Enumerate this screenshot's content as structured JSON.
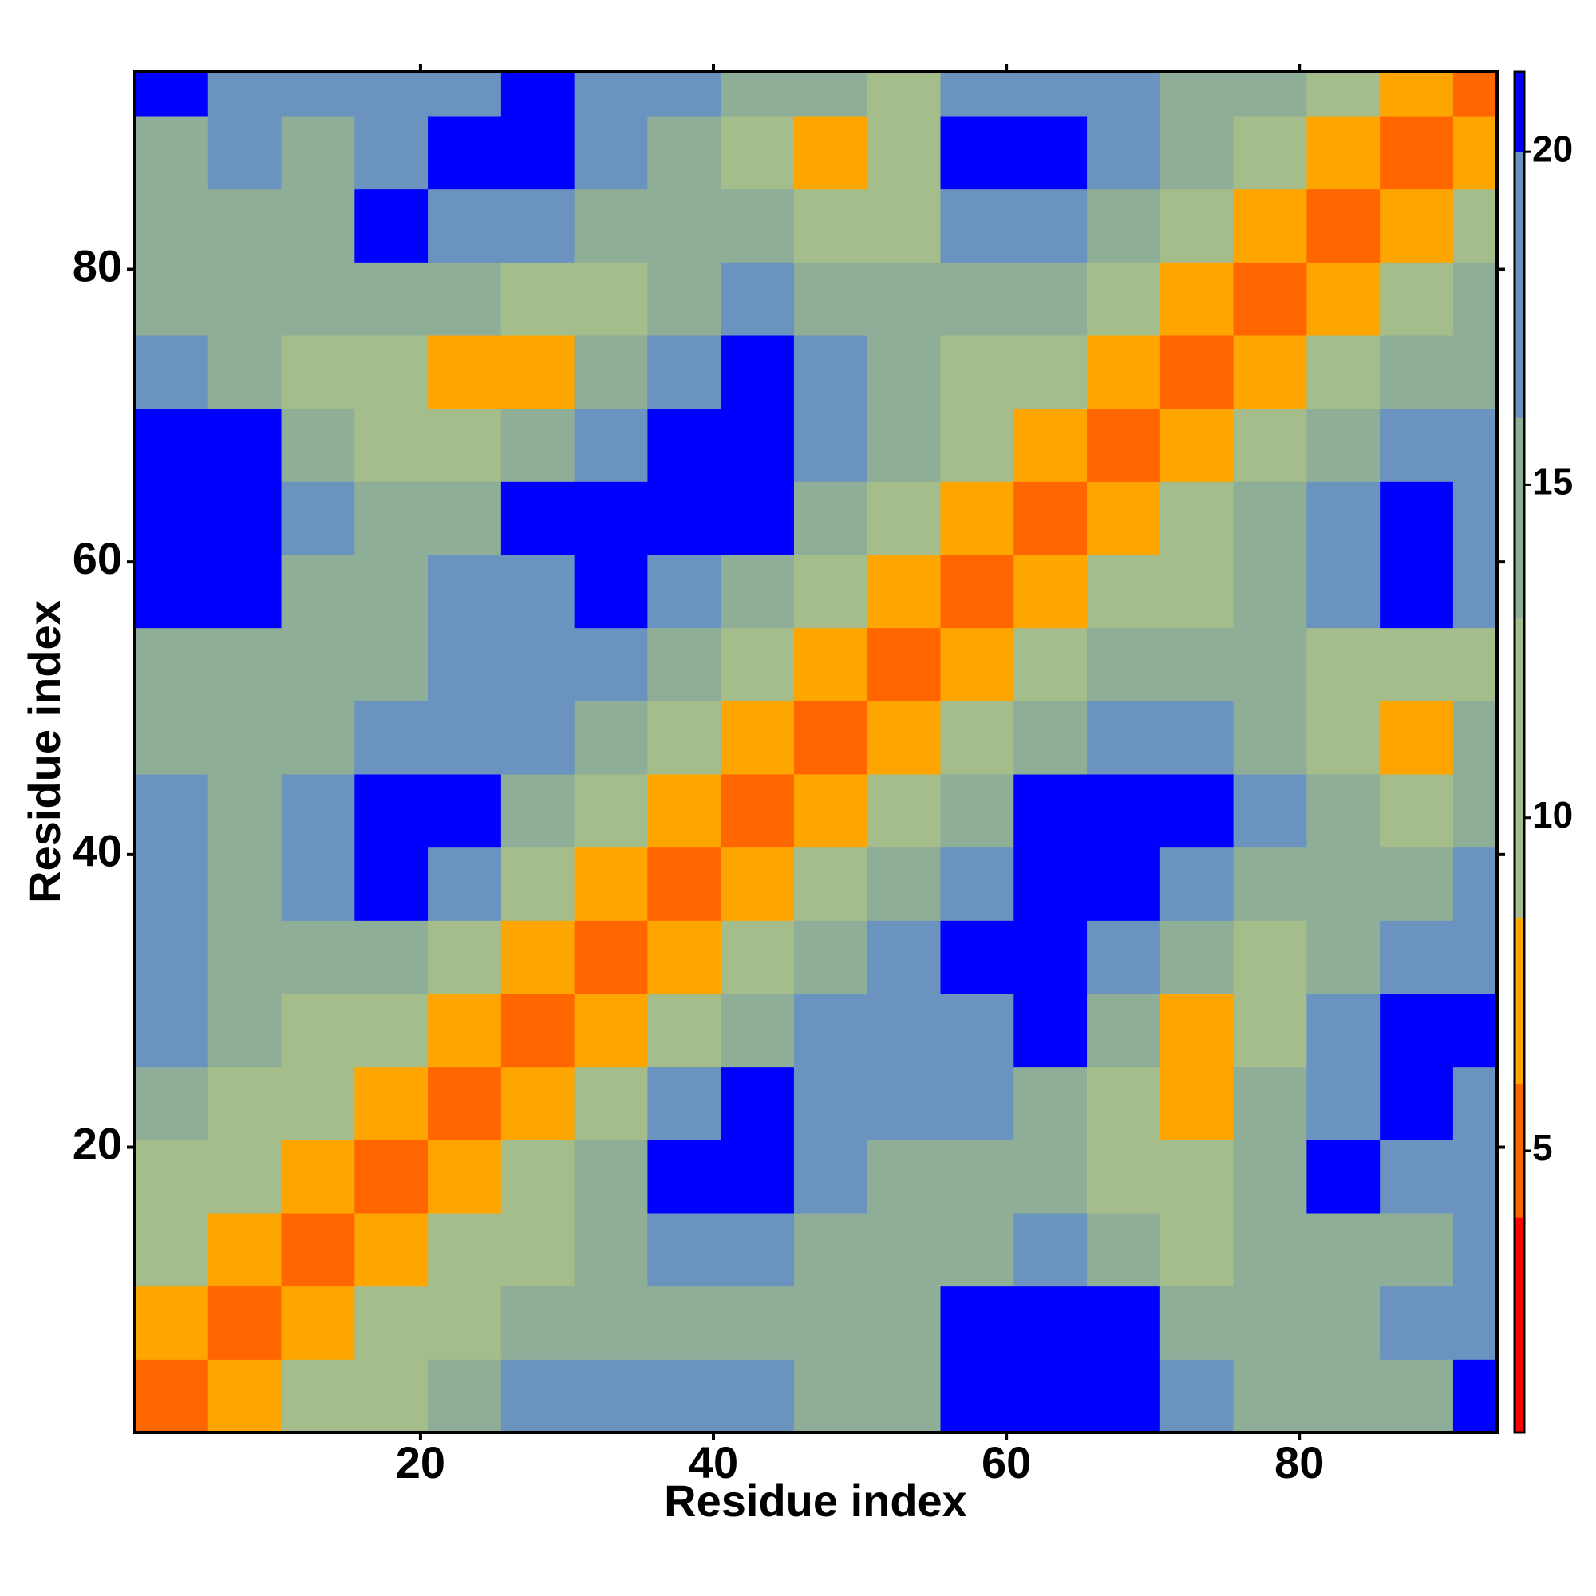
{
  "chart_data": {
    "type": "heatmap",
    "xlabel": "Residue index",
    "ylabel": "Residue index",
    "xbins": [
      0.5,
      5.5,
      10.5,
      15.5,
      20.5,
      25.5,
      30.5,
      35.5,
      40.5,
      45.5,
      50.5,
      55.5,
      60.5,
      65.5,
      70.5,
      75.5,
      80.5,
      85.5,
      90.5,
      93.5
    ],
    "ybins": [
      0.5,
      5.5,
      10.5,
      15.5,
      20.5,
      25.5,
      30.5,
      35.5,
      40.5,
      45.5,
      50.5,
      55.5,
      60.5,
      65.5,
      70.5,
      75.5,
      80.5,
      85.5,
      90.5,
      93.5
    ],
    "z": [
      [
        4,
        8,
        10,
        12,
        14,
        16,
        19,
        17,
        17,
        14,
        15,
        21,
        21,
        21,
        16,
        15,
        14,
        15,
        21
      ],
      [
        8,
        4,
        8,
        10,
        12,
        14,
        14,
        15,
        15,
        13,
        14,
        20,
        21,
        21,
        15,
        13,
        14,
        16,
        19
      ],
      [
        10,
        8,
        4,
        8,
        10,
        12,
        14,
        18,
        18,
        14,
        13,
        15,
        17,
        15,
        12,
        13,
        15,
        15,
        18
      ],
      [
        12,
        10,
        8,
        4,
        8,
        10,
        13,
        21,
        21,
        16,
        14,
        15,
        14,
        10,
        9,
        14,
        21,
        19,
        17
      ],
      [
        14,
        12,
        10,
        8,
        4,
        8,
        11,
        17,
        21,
        18,
        16,
        16,
        15,
        9,
        8,
        14,
        18,
        20,
        19
      ],
      [
        16,
        14,
        12,
        10,
        8,
        4,
        7,
        10,
        14,
        16,
        17,
        19,
        21,
        13,
        8,
        12,
        18,
        21,
        21
      ],
      [
        19,
        14,
        14,
        13,
        11,
        7,
        4,
        7,
        10,
        13,
        17,
        20,
        21,
        18,
        14,
        12,
        15,
        18,
        19
      ],
      [
        17,
        15,
        18,
        21,
        17,
        10,
        7,
        4,
        7,
        10,
        14,
        19,
        21,
        21,
        19,
        15,
        13,
        15,
        18
      ],
      [
        17,
        15,
        18,
        21,
        21,
        14,
        10,
        7,
        4,
        8,
        11,
        15,
        20,
        21,
        20,
        16,
        14,
        12,
        15
      ],
      [
        14,
        13,
        14,
        16,
        18,
        16,
        13,
        10,
        8,
        4,
        8,
        11,
        15,
        17,
        17,
        14,
        10,
        8,
        14
      ],
      [
        15,
        14,
        13,
        14,
        16,
        17,
        17,
        14,
        11,
        8,
        4,
        7,
        10,
        13,
        14,
        15,
        12,
        9,
        12
      ],
      [
        21,
        20,
        15,
        15,
        16,
        19,
        20,
        19,
        15,
        11,
        7,
        4,
        6,
        9,
        11,
        14,
        19,
        20,
        16
      ],
      [
        21,
        21,
        17,
        14,
        15,
        21,
        21,
        21,
        20,
        15,
        10,
        6,
        4,
        7,
        10,
        13,
        19,
        21,
        17
      ],
      [
        21,
        21,
        15,
        10,
        9,
        13,
        18,
        21,
        21,
        17,
        13,
        9,
        7,
        4,
        7,
        10,
        14,
        19,
        17
      ],
      [
        16,
        15,
        12,
        9,
        8,
        8,
        14,
        19,
        20,
        17,
        14,
        11,
        10,
        7,
        4,
        7,
        11,
        14,
        15
      ],
      [
        15,
        13,
        13,
        14,
        14,
        12,
        12,
        15,
        16,
        14,
        15,
        14,
        13,
        10,
        7,
        4,
        7,
        9,
        13
      ],
      [
        14,
        14,
        15,
        21,
        18,
        18,
        15,
        13,
        14,
        10,
        12,
        19,
        19,
        14,
        11,
        7,
        4,
        6,
        10
      ],
      [
        15,
        16,
        15,
        19,
        20,
        21,
        18,
        15,
        12,
        8,
        9,
        20,
        21,
        19,
        14,
        9,
        6,
        4,
        7
      ],
      [
        21,
        19,
        18,
        17,
        19,
        21,
        19,
        18,
        15,
        14,
        12,
        16,
        17,
        17,
        15,
        13,
        10,
        7,
        4
      ]
    ],
    "colorscale": [
      [
        0.77,
        "#ff0000"
      ],
      [
        4,
        "#ff6600"
      ],
      [
        6,
        "#ffa500"
      ],
      [
        8.5,
        "#a5bd8a"
      ],
      [
        13,
        "#8fae98"
      ],
      [
        16,
        "#6b93c0"
      ],
      [
        20,
        "#0000ff"
      ]
    ],
    "xlim": [
      0.5,
      93.5
    ],
    "ylim": [
      0.5,
      93.5
    ],
    "xticks": [
      20,
      40,
      60,
      80
    ],
    "yticks": [
      20,
      40,
      60,
      80
    ],
    "zlim": [
      0.77,
      21.2
    ],
    "zticks": [
      5,
      10,
      15,
      20
    ]
  }
}
